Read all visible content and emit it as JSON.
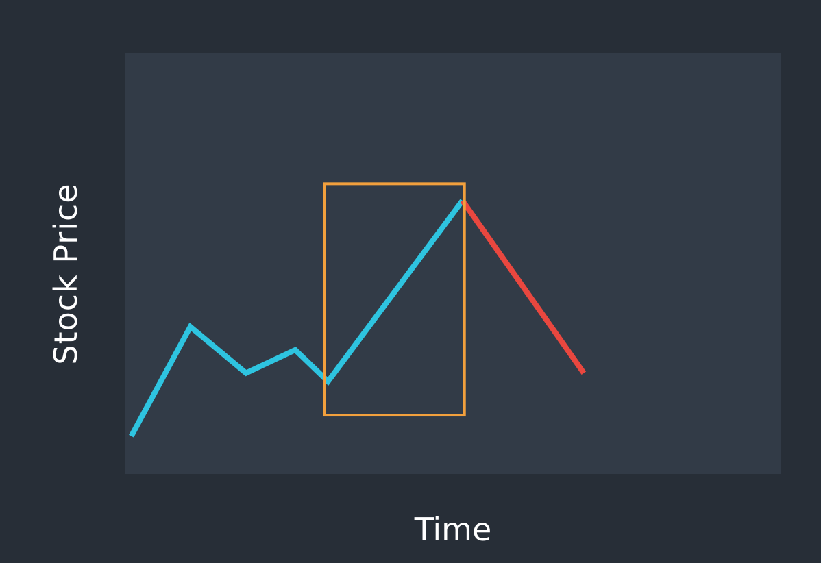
{
  "chart_data": {
    "type": "line",
    "title": "",
    "xlabel": "Time",
    "ylabel": "Stock Price",
    "xlim": [
      0,
      100
    ],
    "ylim": [
      0,
      100
    ],
    "grid": false,
    "series": [
      {
        "color": "#2ec4e0",
        "points": [
          {
            "x": 1,
            "y": 9
          },
          {
            "x": 10,
            "y": 35
          },
          {
            "x": 18.5,
            "y": 24
          },
          {
            "x": 26,
            "y": 29.5
          },
          {
            "x": 31,
            "y": 22
          },
          {
            "x": 51.5,
            "y": 65
          }
        ]
      },
      {
        "color": "#e9473f",
        "points": [
          {
            "x": 51.5,
            "y": 65
          },
          {
            "x": 70,
            "y": 24
          }
        ]
      }
    ],
    "highlight": {
      "color": "#f2a03d",
      "x": [
        30.5,
        51.8
      ],
      "y": [
        14,
        69
      ]
    }
  }
}
